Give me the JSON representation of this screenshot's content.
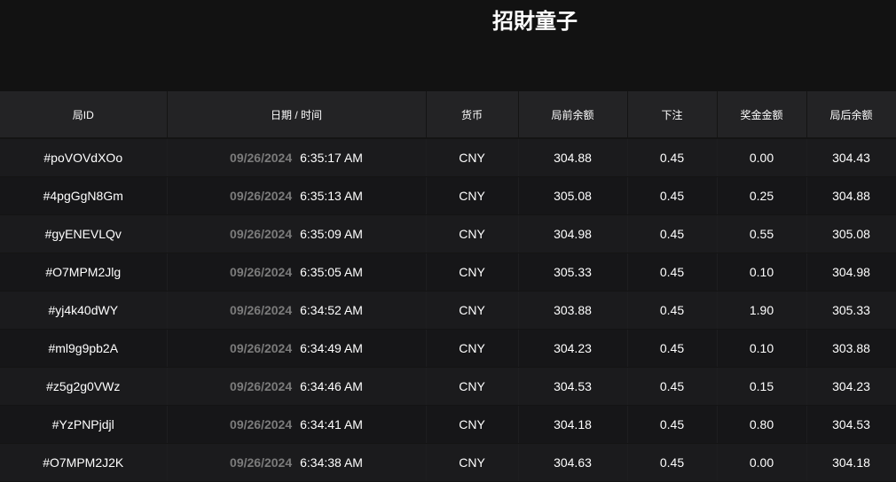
{
  "title": "招財童子",
  "headers": [
    "局ID",
    "日期 / 时间",
    "货币",
    "局前余额",
    "下注",
    "奖金金额",
    "局后余额"
  ],
  "rows": [
    {
      "id": "#poVOVdXOo",
      "date": "09/26/2024",
      "time": "6:35:17 AM",
      "currency": "CNY",
      "before": "304.88",
      "bet": "0.45",
      "win": "0.00",
      "after": "304.43"
    },
    {
      "id": "#4pgGgN8Gm",
      "date": "09/26/2024",
      "time": "6:35:13 AM",
      "currency": "CNY",
      "before": "305.08",
      "bet": "0.45",
      "win": "0.25",
      "after": "304.88"
    },
    {
      "id": "#gyENEVLQv",
      "date": "09/26/2024",
      "time": "6:35:09 AM",
      "currency": "CNY",
      "before": "304.98",
      "bet": "0.45",
      "win": "0.55",
      "after": "305.08"
    },
    {
      "id": "#O7MPM2Jlg",
      "date": "09/26/2024",
      "time": "6:35:05 AM",
      "currency": "CNY",
      "before": "305.33",
      "bet": "0.45",
      "win": "0.10",
      "after": "304.98"
    },
    {
      "id": "#yj4k40dWY",
      "date": "09/26/2024",
      "time": "6:34:52 AM",
      "currency": "CNY",
      "before": "303.88",
      "bet": "0.45",
      "win": "1.90",
      "after": "305.33"
    },
    {
      "id": "#ml9g9pb2A",
      "date": "09/26/2024",
      "time": "6:34:49 AM",
      "currency": "CNY",
      "before": "304.23",
      "bet": "0.45",
      "win": "0.10",
      "after": "303.88"
    },
    {
      "id": "#z5g2g0VWz",
      "date": "09/26/2024",
      "time": "6:34:46 AM",
      "currency": "CNY",
      "before": "304.53",
      "bet": "0.45",
      "win": "0.15",
      "after": "304.23"
    },
    {
      "id": "#YzPNPjdjl",
      "date": "09/26/2024",
      "time": "6:34:41 AM",
      "currency": "CNY",
      "before": "304.18",
      "bet": "0.45",
      "win": "0.80",
      "after": "304.53"
    },
    {
      "id": "#O7MPM2J2K",
      "date": "09/26/2024",
      "time": "6:34:38 AM",
      "currency": "CNY",
      "before": "304.63",
      "bet": "0.45",
      "win": "0.00",
      "after": "304.18"
    }
  ]
}
